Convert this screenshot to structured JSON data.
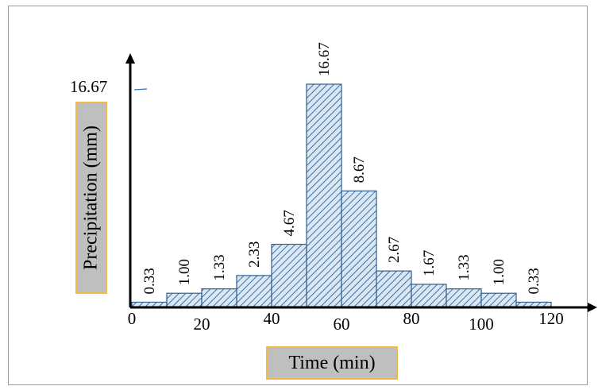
{
  "chart_data": {
    "type": "bar",
    "title": "",
    "xlabel": "Time (min)",
    "ylabel": "Precipitation (mm)",
    "x_ticks": [
      "0",
      "20",
      "40",
      "60",
      "80",
      "100",
      "120"
    ],
    "y_tick_label": "16.67",
    "bins": [
      {
        "start": 0,
        "end": 10,
        "value": 0.33,
        "label": "0.33"
      },
      {
        "start": 10,
        "end": 20,
        "value": 1.0,
        "label": "1.00"
      },
      {
        "start": 20,
        "end": 30,
        "value": 1.33,
        "label": "1.33"
      },
      {
        "start": 30,
        "end": 40,
        "value": 2.33,
        "label": "2.33"
      },
      {
        "start": 40,
        "end": 50,
        "value": 4.67,
        "label": "4.67"
      },
      {
        "start": 50,
        "end": 60,
        "value": 16.67,
        "label": "16.67"
      },
      {
        "start": 60,
        "end": 70,
        "value": 8.67,
        "label": "8.67"
      },
      {
        "start": 70,
        "end": 80,
        "value": 2.67,
        "label": "2.67"
      },
      {
        "start": 80,
        "end": 90,
        "value": 1.67,
        "label": "1.67"
      },
      {
        "start": 90,
        "end": 100,
        "value": 1.33,
        "label": "1.33"
      },
      {
        "start": 100,
        "end": 110,
        "value": 1.0,
        "label": "1.00"
      },
      {
        "start": 110,
        "end": 120,
        "value": 0.33,
        "label": "0.33"
      }
    ],
    "bar_fill": "#dbe8f4",
    "hatch_color": "#3a6fa8",
    "bar_edge": "#2f5e8e",
    "grid": false
  }
}
